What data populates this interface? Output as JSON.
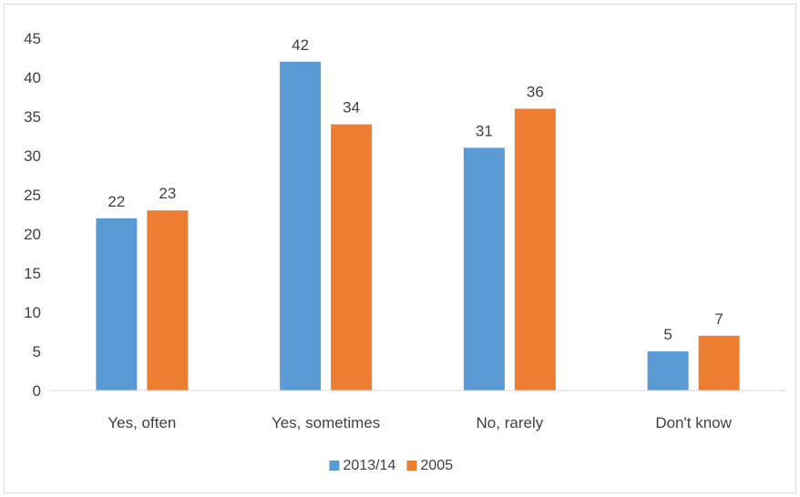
{
  "chart_data": {
    "type": "bar",
    "title": "",
    "xlabel": "",
    "ylabel": "",
    "categories": [
      "Yes, often",
      "Yes, sometimes",
      "No, rarely",
      "Don't know"
    ],
    "series": [
      {
        "name": "2013/14",
        "values": [
          22,
          42,
          31,
          5
        ],
        "color": "#5b9bd5"
      },
      {
        "name": "2005",
        "values": [
          23,
          34,
          36,
          7
        ],
        "color": "#ed7d31"
      }
    ],
    "ylim": [
      0,
      45
    ],
    "yticks": [
      0,
      5,
      10,
      15,
      20,
      25,
      30,
      35,
      40,
      45
    ],
    "grid": false,
    "data_labels": true,
    "legend_position": "bottom"
  },
  "colors": {
    "axis": "#d9d9d9",
    "text": "#404040"
  }
}
